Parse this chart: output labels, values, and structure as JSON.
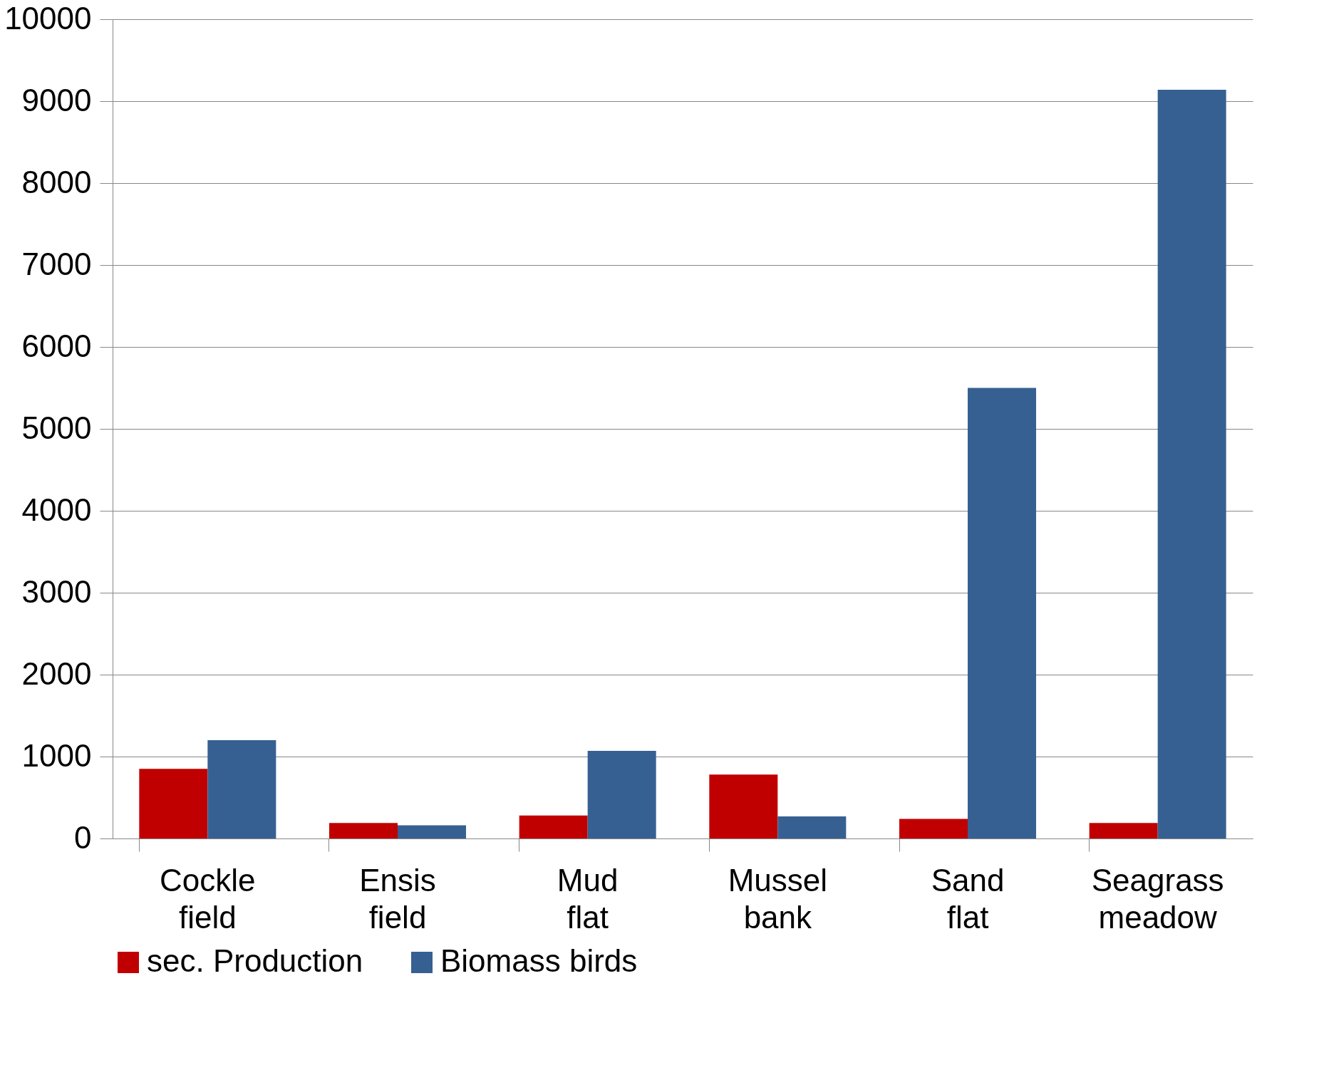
{
  "chart_data": {
    "type": "bar",
    "categories": [
      "Cockle field",
      "Ensis field",
      "Mud flat",
      "Mussel bank",
      "Sand flat",
      "Seagrass meadow"
    ],
    "series": [
      {
        "name": "sec. Production",
        "color": "#c00000",
        "values": [
          850,
          190,
          280,
          780,
          240,
          190
        ]
      },
      {
        "name": "Biomass birds",
        "color": "#376092",
        "values": [
          1200,
          160,
          1070,
          270,
          5500,
          9140
        ]
      }
    ],
    "ylim": [
      0,
      10000
    ],
    "yticks": [
      0,
      1000,
      2000,
      3000,
      4000,
      5000,
      6000,
      7000,
      8000,
      9000,
      10000
    ],
    "grid": "y",
    "legend": "bottom"
  }
}
